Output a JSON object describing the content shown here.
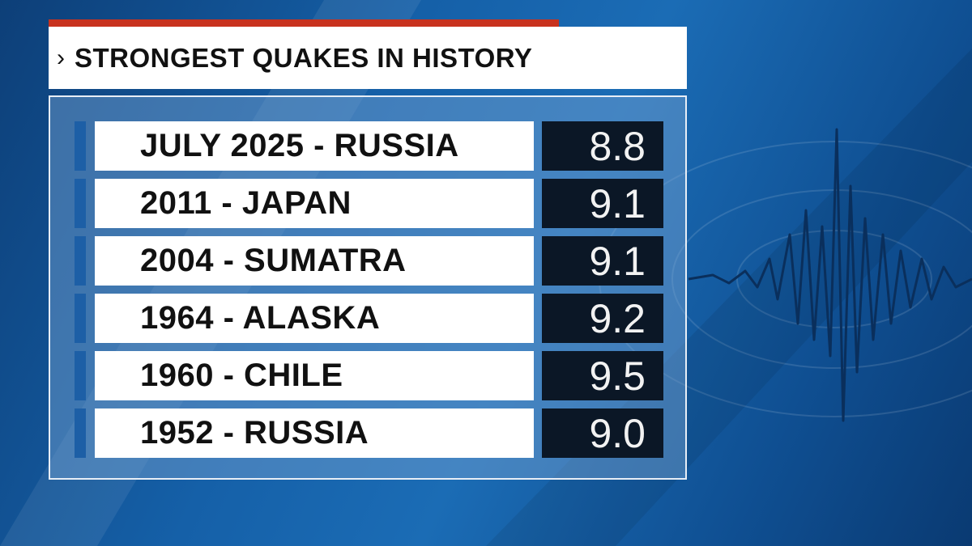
{
  "header": {
    "title": "STRONGEST QUAKES IN HISTORY"
  },
  "table": {
    "rows": [
      [
        "JULY 2025 - RUSSIA",
        "8.8"
      ],
      [
        "2011 - JAPAN",
        "9.1"
      ],
      [
        "2004 - SUMATRA",
        "9.1"
      ],
      [
        "1964 - ALASKA",
        "9.2"
      ],
      [
        "1960 - CHILE",
        "9.5"
      ],
      [
        "1952 - RUSSIA",
        "9.0"
      ]
    ]
  }
}
